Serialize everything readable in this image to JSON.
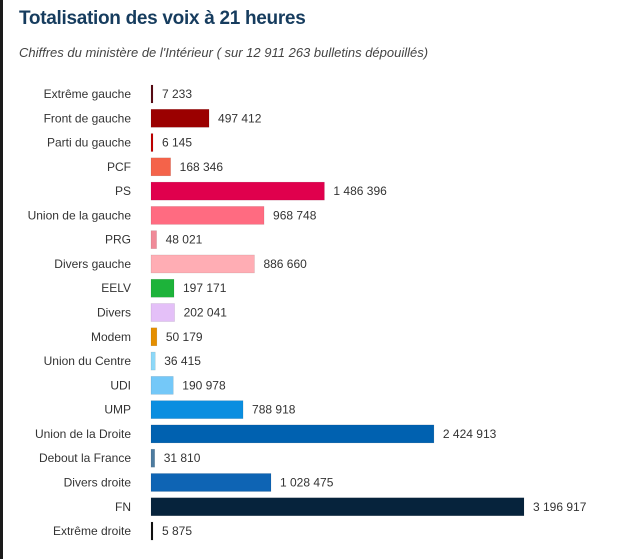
{
  "chart_data": {
    "type": "bar",
    "orientation": "horizontal",
    "title": "Totalisation des voix à 21 heures",
    "subtitle": "Chiffres du ministère de l'Intérieur ( sur 12 911 263 bulletins dépouillés)",
    "categories": [
      "Extrême gauche",
      "Front de gauche",
      "Parti du gauche",
      "PCF",
      "PS",
      "Union de la gauche",
      "PRG",
      "Divers gauche",
      "EELV",
      "Divers",
      "Modem",
      "Union du Centre",
      "UDI",
      "UMP",
      "Union de la Droite",
      "Debout la France",
      "Divers droite",
      "FN",
      "Extrême droite"
    ],
    "values": [
      7233,
      497412,
      6145,
      168346,
      1486396,
      968748,
      48021,
      886660,
      197171,
      202041,
      50179,
      36415,
      190978,
      788918,
      2424913,
      31810,
      1028475,
      3196917,
      5875
    ],
    "labels": [
      "7 233",
      "497 412",
      "6 145",
      "168 346",
      "1 486 396",
      "968 748",
      "48 021",
      "886 660",
      "197 171",
      "202 041",
      "50 179",
      "36 415",
      "190 978",
      "788 918",
      "2 424 913",
      "31 810",
      "1 028 475",
      "3 196 917",
      "5 875"
    ],
    "colors": [
      "#5a0a14",
      "#9b0000",
      "#c40000",
      "#f4634a",
      "#e0004d",
      "#ff6b81",
      "#f08a98",
      "#ffadb4",
      "#1db33a",
      "#e4c0f8",
      "#e58f00",
      "#8dd8f8",
      "#74c8f8",
      "#0a8ee0",
      "#0061b0",
      "#4d7ca0",
      "#0e64b4",
      "#06233c",
      "#111111"
    ],
    "grid": false,
    "legend": "none"
  }
}
